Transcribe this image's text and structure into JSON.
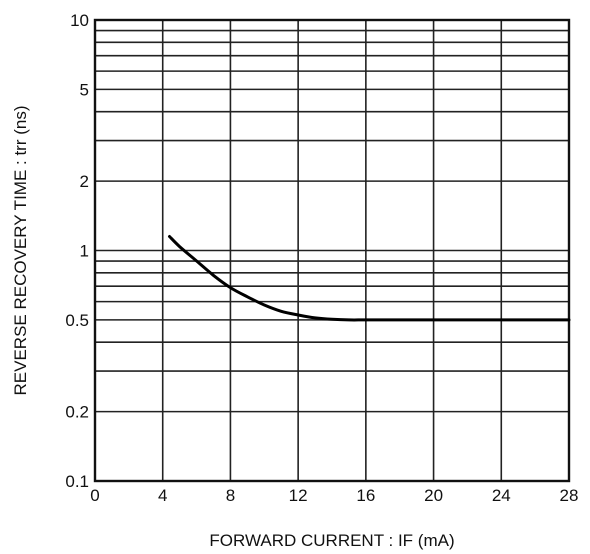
{
  "chart_data": {
    "type": "line",
    "xlabel": "FORWARD CURRENT : IF (mA)",
    "ylabel": "REVERSE RECOVERY TIME : trr (ns)",
    "xlim": [
      0,
      28
    ],
    "ylim": [
      0.1,
      10
    ],
    "yscale": "log",
    "grid": true,
    "xticks": [
      0,
      4,
      8,
      12,
      16,
      20,
      24,
      28
    ],
    "yticks": [
      0.1,
      0.2,
      0.5,
      1,
      2,
      5,
      10
    ],
    "ytick_labels": [
      "0.1",
      "0.2",
      "0.5",
      "1",
      "2",
      "5",
      "10"
    ],
    "x": [
      4.4,
      5,
      6,
      7,
      8,
      9,
      10,
      11,
      12,
      13,
      14,
      15,
      16,
      18,
      20,
      24,
      28
    ],
    "y": [
      1.15,
      1.04,
      0.9,
      0.78,
      0.69,
      0.63,
      0.58,
      0.545,
      0.525,
      0.51,
      0.503,
      0.5,
      0.5,
      0.5,
      0.5,
      0.5,
      0.5
    ]
  }
}
